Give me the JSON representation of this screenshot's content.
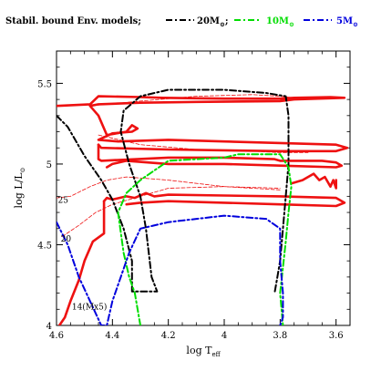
{
  "chart_data": {
    "type": "line",
    "title": "",
    "legend": {
      "prefix": "Stabil. bound Env. models;",
      "placement": "top",
      "entries": [
        {
          "label_main": "20M",
          "label_sub": "⊙",
          "label_suffix": ";",
          "color": "#000000",
          "dash": "dashdot"
        },
        {
          "label_main": "10M",
          "label_sub": "⊙",
          "label_suffix": "",
          "color": "#00dd00",
          "dash": "dashdot"
        },
        {
          "label_main": "5M",
          "label_sub": "⊙",
          "label_suffix": "",
          "color": "#0000dd",
          "dash": "dashdot"
        }
      ]
    },
    "xlabel_main": "log T",
    "xlabel_sub": "eff",
    "ylabel_main": "log L/L",
    "ylabel_sub": "⊙",
    "xlim": [
      4.6,
      3.55
    ],
    "ylim": [
      4.0,
      5.7
    ],
    "xticks": [
      {
        "v": 4.6,
        "label": "4.6"
      },
      {
        "v": 4.4,
        "label": "4.4"
      },
      {
        "v": 4.2,
        "label": "4.2"
      },
      {
        "v": 4.0,
        "label": "4"
      },
      {
        "v": 3.8,
        "label": "3.8"
      },
      {
        "v": 3.6,
        "label": "3.6"
      }
    ],
    "yticks": [
      {
        "v": 4.0,
        "label": "4"
      },
      {
        "v": 4.5,
        "label": "4.5"
      },
      {
        "v": 5.0,
        "label": "5"
      },
      {
        "v": 5.5,
        "label": "5.5"
      }
    ],
    "annotations": [
      {
        "text": "25",
        "x": 4.595,
        "y": 4.76
      },
      {
        "text": "20",
        "x": 4.585,
        "y": 4.52
      },
      {
        "text": "14(Mx5)",
        "x": 4.545,
        "y": 4.1
      }
    ],
    "series": [
      {
        "kind": "track",
        "color": "#ee1111",
        "width": 2.6,
        "dash": "solid",
        "x": [
          4.6,
          4.48,
          4.45,
          4.3,
          4.22,
          4.0,
          3.8,
          3.75,
          3.62,
          3.57,
          3.75,
          3.8,
          4.1,
          4.3,
          4.45,
          4.48,
          4.45,
          4.42
        ],
        "y": [
          5.36,
          5.37,
          5.42,
          5.415,
          5.41,
          5.405,
          5.405,
          5.41,
          5.415,
          5.41,
          5.4,
          5.39,
          5.385,
          5.38,
          5.37,
          5.36,
          5.3,
          5.18
        ]
      },
      {
        "kind": "track",
        "color": "#ee1111",
        "width": 2.6,
        "dash": "solid",
        "x": [
          4.42,
          4.35,
          4.33,
          4.31,
          4.33,
          4.4,
          4.45,
          4.38,
          4.2,
          4.0,
          3.8,
          3.6,
          3.56,
          3.6,
          3.8,
          4.2,
          4.44,
          4.45
        ],
        "y": [
          5.18,
          5.2,
          5.24,
          5.22,
          5.2,
          5.19,
          5.15,
          5.14,
          5.15,
          5.14,
          5.13,
          5.12,
          5.1,
          5.08,
          5.08,
          5.09,
          5.1,
          5.12
        ]
      },
      {
        "kind": "track",
        "color": "#ee1111",
        "width": 2.6,
        "dash": "solid",
        "x": [
          4.45,
          4.45,
          4.44,
          4.2,
          4.0,
          3.82,
          3.8,
          3.65,
          3.6,
          3.58,
          3.6,
          3.8,
          4.0,
          4.2,
          4.35,
          4.4,
          4.42
        ],
        "y": [
          5.12,
          5.03,
          5.02,
          5.04,
          5.04,
          5.03,
          5.02,
          5.02,
          5.01,
          4.99,
          4.98,
          4.99,
          5.0,
          5.0,
          5.02,
          5.0,
          4.98
        ]
      },
      {
        "kind": "track",
        "color": "#ee1111",
        "width": 2.6,
        "dash": "solid",
        "x": [
          3.76,
          3.72,
          3.68,
          3.66,
          3.64,
          3.62,
          3.61,
          3.6,
          3.6
        ],
        "y": [
          4.88,
          4.9,
          4.94,
          4.9,
          4.92,
          4.86,
          4.9,
          4.85,
          4.9
        ]
      },
      {
        "kind": "track",
        "color": "#ee1111",
        "width": 2.6,
        "dash": "solid",
        "x": [
          4.43,
          4.42,
          4.4,
          4.35,
          4.32,
          4.28,
          4.25,
          4.2,
          4.0,
          3.8,
          3.6,
          3.57,
          3.6,
          3.8,
          4.0,
          4.2,
          4.3,
          4.35
        ],
        "y": [
          4.77,
          4.79,
          4.78,
          4.8,
          4.79,
          4.82,
          4.8,
          4.81,
          4.805,
          4.8,
          4.79,
          4.76,
          4.74,
          4.75,
          4.76,
          4.77,
          4.76,
          4.75
        ]
      },
      {
        "kind": "track",
        "color": "#ee1111",
        "width": 2.6,
        "dash": "solid",
        "x": [
          4.43,
          4.43,
          4.47,
          4.5,
          4.52,
          4.55,
          4.57,
          4.59
        ],
        "y": [
          4.77,
          4.57,
          4.52,
          4.4,
          4.28,
          4.15,
          4.05,
          4.0
        ]
      },
      {
        "kind": "thin",
        "color": "#ee1111",
        "width": 0.8,
        "dash": "dashed",
        "x": [
          4.48,
          4.3,
          4.1,
          3.9,
          3.8,
          3.75
        ],
        "y": [
          5.36,
          5.39,
          5.42,
          5.43,
          5.42,
          5.41
        ]
      },
      {
        "kind": "thin",
        "color": "#ee1111",
        "width": 0.8,
        "dash": "dashed",
        "x": [
          4.45,
          4.3,
          4.1,
          3.9,
          3.8,
          3.7
        ],
        "y": [
          5.18,
          5.12,
          5.09,
          5.08,
          5.07,
          5.07
        ]
      },
      {
        "kind": "thin",
        "color": "#ee1111",
        "width": 0.8,
        "dash": "dashed",
        "x": [
          4.6,
          4.55,
          4.48,
          4.42,
          4.35,
          4.2,
          4.0,
          3.8
        ],
        "y": [
          4.79,
          4.8,
          4.86,
          4.9,
          4.92,
          4.9,
          4.86,
          4.84
        ]
      },
      {
        "kind": "thin",
        "color": "#ee1111",
        "width": 0.8,
        "dash": "dashed",
        "x": [
          4.58,
          4.52,
          4.46,
          4.4,
          4.3,
          4.2,
          4.0,
          3.8
        ],
        "y": [
          4.55,
          4.62,
          4.7,
          4.75,
          4.8,
          4.85,
          4.86,
          4.85
        ]
      },
      {
        "kind": "envelope",
        "name": "20M",
        "color": "#000000",
        "width": 2.0,
        "dash": "dashdot",
        "x": [
          4.6,
          4.56,
          4.5,
          4.44,
          4.4,
          4.36,
          4.33,
          4.33,
          4.24,
          4.26,
          4.28,
          4.3,
          4.34,
          4.37,
          4.36,
          4.3,
          4.2,
          4.0,
          3.85,
          3.78,
          3.77,
          3.77,
          3.78,
          3.79,
          3.8,
          3.81,
          3.82
        ],
        "y": [
          5.3,
          5.23,
          5.05,
          4.9,
          4.78,
          4.6,
          4.4,
          4.21,
          4.21,
          4.3,
          4.6,
          4.8,
          5.0,
          5.2,
          5.33,
          5.42,
          5.46,
          5.46,
          5.44,
          5.42,
          5.3,
          5.0,
          4.8,
          4.6,
          4.4,
          4.3,
          4.2
        ]
      },
      {
        "kind": "envelope",
        "name": "10M",
        "color": "#00dd00",
        "width": 2.0,
        "dash": "dashdot",
        "x": [
          4.3,
          4.32,
          4.34,
          4.36,
          4.38,
          4.35,
          4.3,
          4.2,
          4.0,
          3.95,
          3.8,
          3.77,
          3.76,
          3.77,
          3.78,
          3.79,
          3.8,
          3.79
        ],
        "y": [
          4.0,
          4.2,
          4.3,
          4.45,
          4.7,
          4.82,
          4.9,
          5.02,
          5.04,
          5.06,
          5.06,
          4.98,
          4.86,
          4.7,
          4.52,
          4.36,
          4.2,
          4.0
        ]
      },
      {
        "kind": "envelope",
        "name": "5M",
        "color": "#0000dd",
        "width": 2.0,
        "dash": "dashdot",
        "x": [
          4.6,
          4.56,
          4.52,
          4.48,
          4.44,
          4.42,
          4.4,
          4.37,
          4.34,
          4.3,
          4.2,
          4.0,
          3.85,
          3.8,
          3.8,
          3.79,
          3.79,
          3.8
        ],
        "y": [
          4.64,
          4.5,
          4.3,
          4.15,
          4.0,
          4.0,
          4.15,
          4.3,
          4.45,
          4.6,
          4.64,
          4.68,
          4.66,
          4.6,
          4.4,
          4.2,
          4.05,
          4.0
        ]
      }
    ]
  }
}
